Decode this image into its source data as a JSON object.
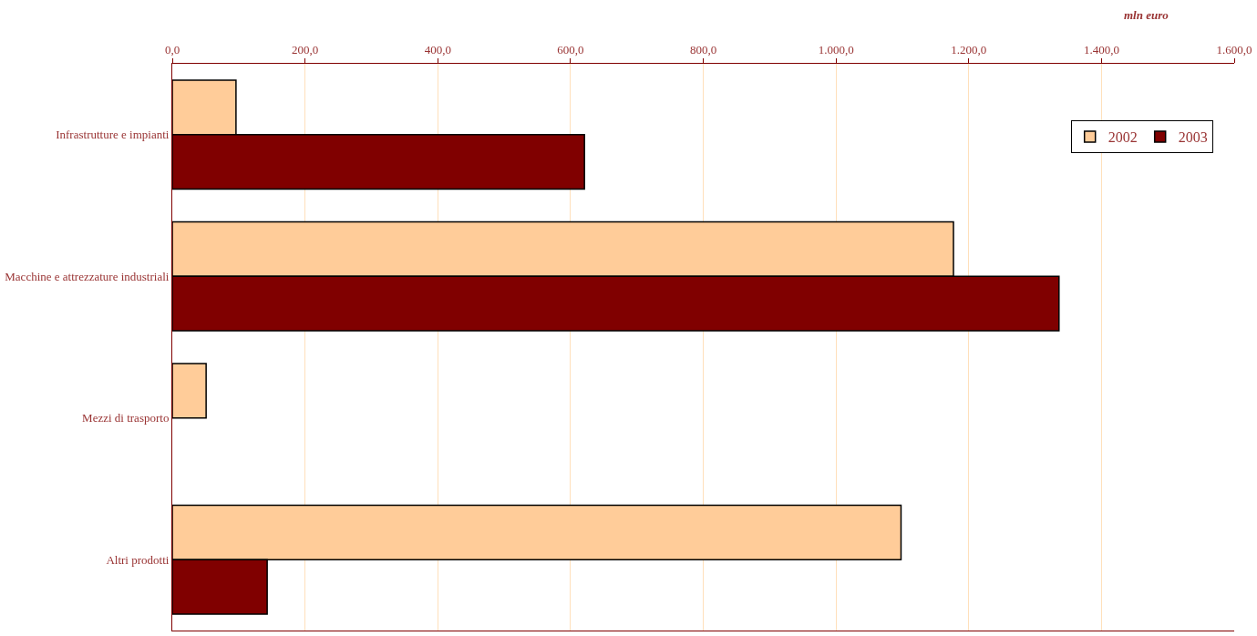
{
  "chart_data": {
    "type": "bar",
    "orientation": "horizontal",
    "xlabel": "mln euro",
    "categories": [
      "Infrastrutture e impianti",
      "Macchine e attrezzature industriali",
      "Mezzi di trasporto",
      "Altri prodotti"
    ],
    "series": [
      {
        "name": "2002",
        "color": "#ffcc99",
        "values": [
          96,
          1177,
          51,
          1098
        ]
      },
      {
        "name": "2003",
        "color": "#800000",
        "values": [
          621,
          1336,
          null,
          143
        ]
      }
    ],
    "xlim": [
      0,
      1600
    ],
    "xticks": [
      {
        "value": 0,
        "label": "0,0"
      },
      {
        "value": 200,
        "label": "200,0"
      },
      {
        "value": 400,
        "label": "400,0"
      },
      {
        "value": 600,
        "label": "600,0"
      },
      {
        "value": 800,
        "label": "800,0"
      },
      {
        "value": 1000,
        "label": "1.000,0"
      },
      {
        "value": 1200,
        "label": "1.200,0"
      },
      {
        "value": 1400,
        "label": "1.400,0"
      },
      {
        "value": 1600,
        "label": "1.600,0"
      }
    ],
    "grid": "x",
    "legend": "top right"
  }
}
